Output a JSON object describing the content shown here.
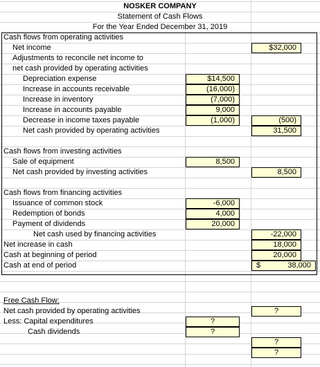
{
  "header": {
    "company": "NOSKER COMPANY",
    "statement": "Statement of Cash Flows",
    "period": "For the Year Ended December 31, 2019"
  },
  "operating": {
    "heading": "Cash flows from operating activities",
    "net_income_label": "Net income",
    "net_income_value": "$32,000",
    "adjust_line1": "Adjustments to reconcile net income to",
    "adjust_line2": "net cash provided by operating activities",
    "items": [
      {
        "label": "Depreciation expense",
        "value": "$14,500"
      },
      {
        "label": "Increase in accounts receivable",
        "value": "(16,000)"
      },
      {
        "label": "Increase in inventory",
        "value": "(7,000)"
      },
      {
        "label": "Increase in accounts payable",
        "value": "9,000"
      },
      {
        "label": "Decrease in income taxes payable",
        "value": "(1,000)"
      }
    ],
    "adjust_total": "(500)",
    "net_label": "Net cash provided by operating activities",
    "net_value": "31,500"
  },
  "investing": {
    "heading": "Cash flows from investing activities",
    "sale_label": "Sale of equipment",
    "sale_value": "8,500",
    "net_label": "Net cash provided by investing activities",
    "net_value": "8,500"
  },
  "financing": {
    "heading": "Cash flows from financing activities",
    "items": [
      {
        "label": "Issuance of common stock",
        "value": "-6,000"
      },
      {
        "label": "Redemption of bonds",
        "value": "4,000"
      },
      {
        "label": "Payment of dividends",
        "value": "20,000"
      }
    ],
    "net_label": "Net cash used by financing activities",
    "net_value": "-22,000"
  },
  "summary": {
    "increase_label": "Net increase in cash",
    "increase_value": "18,000",
    "begin_label": "Cash at beginning of period",
    "begin_value": "20,000",
    "end_label": "Cash at end of period",
    "end_currency": "$",
    "end_value": "38,000"
  },
  "fcf": {
    "heading": "Free Cash Flow:",
    "net_label": "Net cash provided by operating activities",
    "net_value": "?",
    "less_label": "Less:  Capital expenditures",
    "capex_value": "?",
    "div_label": "Cash dividends",
    "div_value": "?",
    "sub_value": "?",
    "final_value": "?"
  },
  "colors": {
    "cell_fill": "#ffffd6",
    "gridline": "#d4d4d4"
  }
}
